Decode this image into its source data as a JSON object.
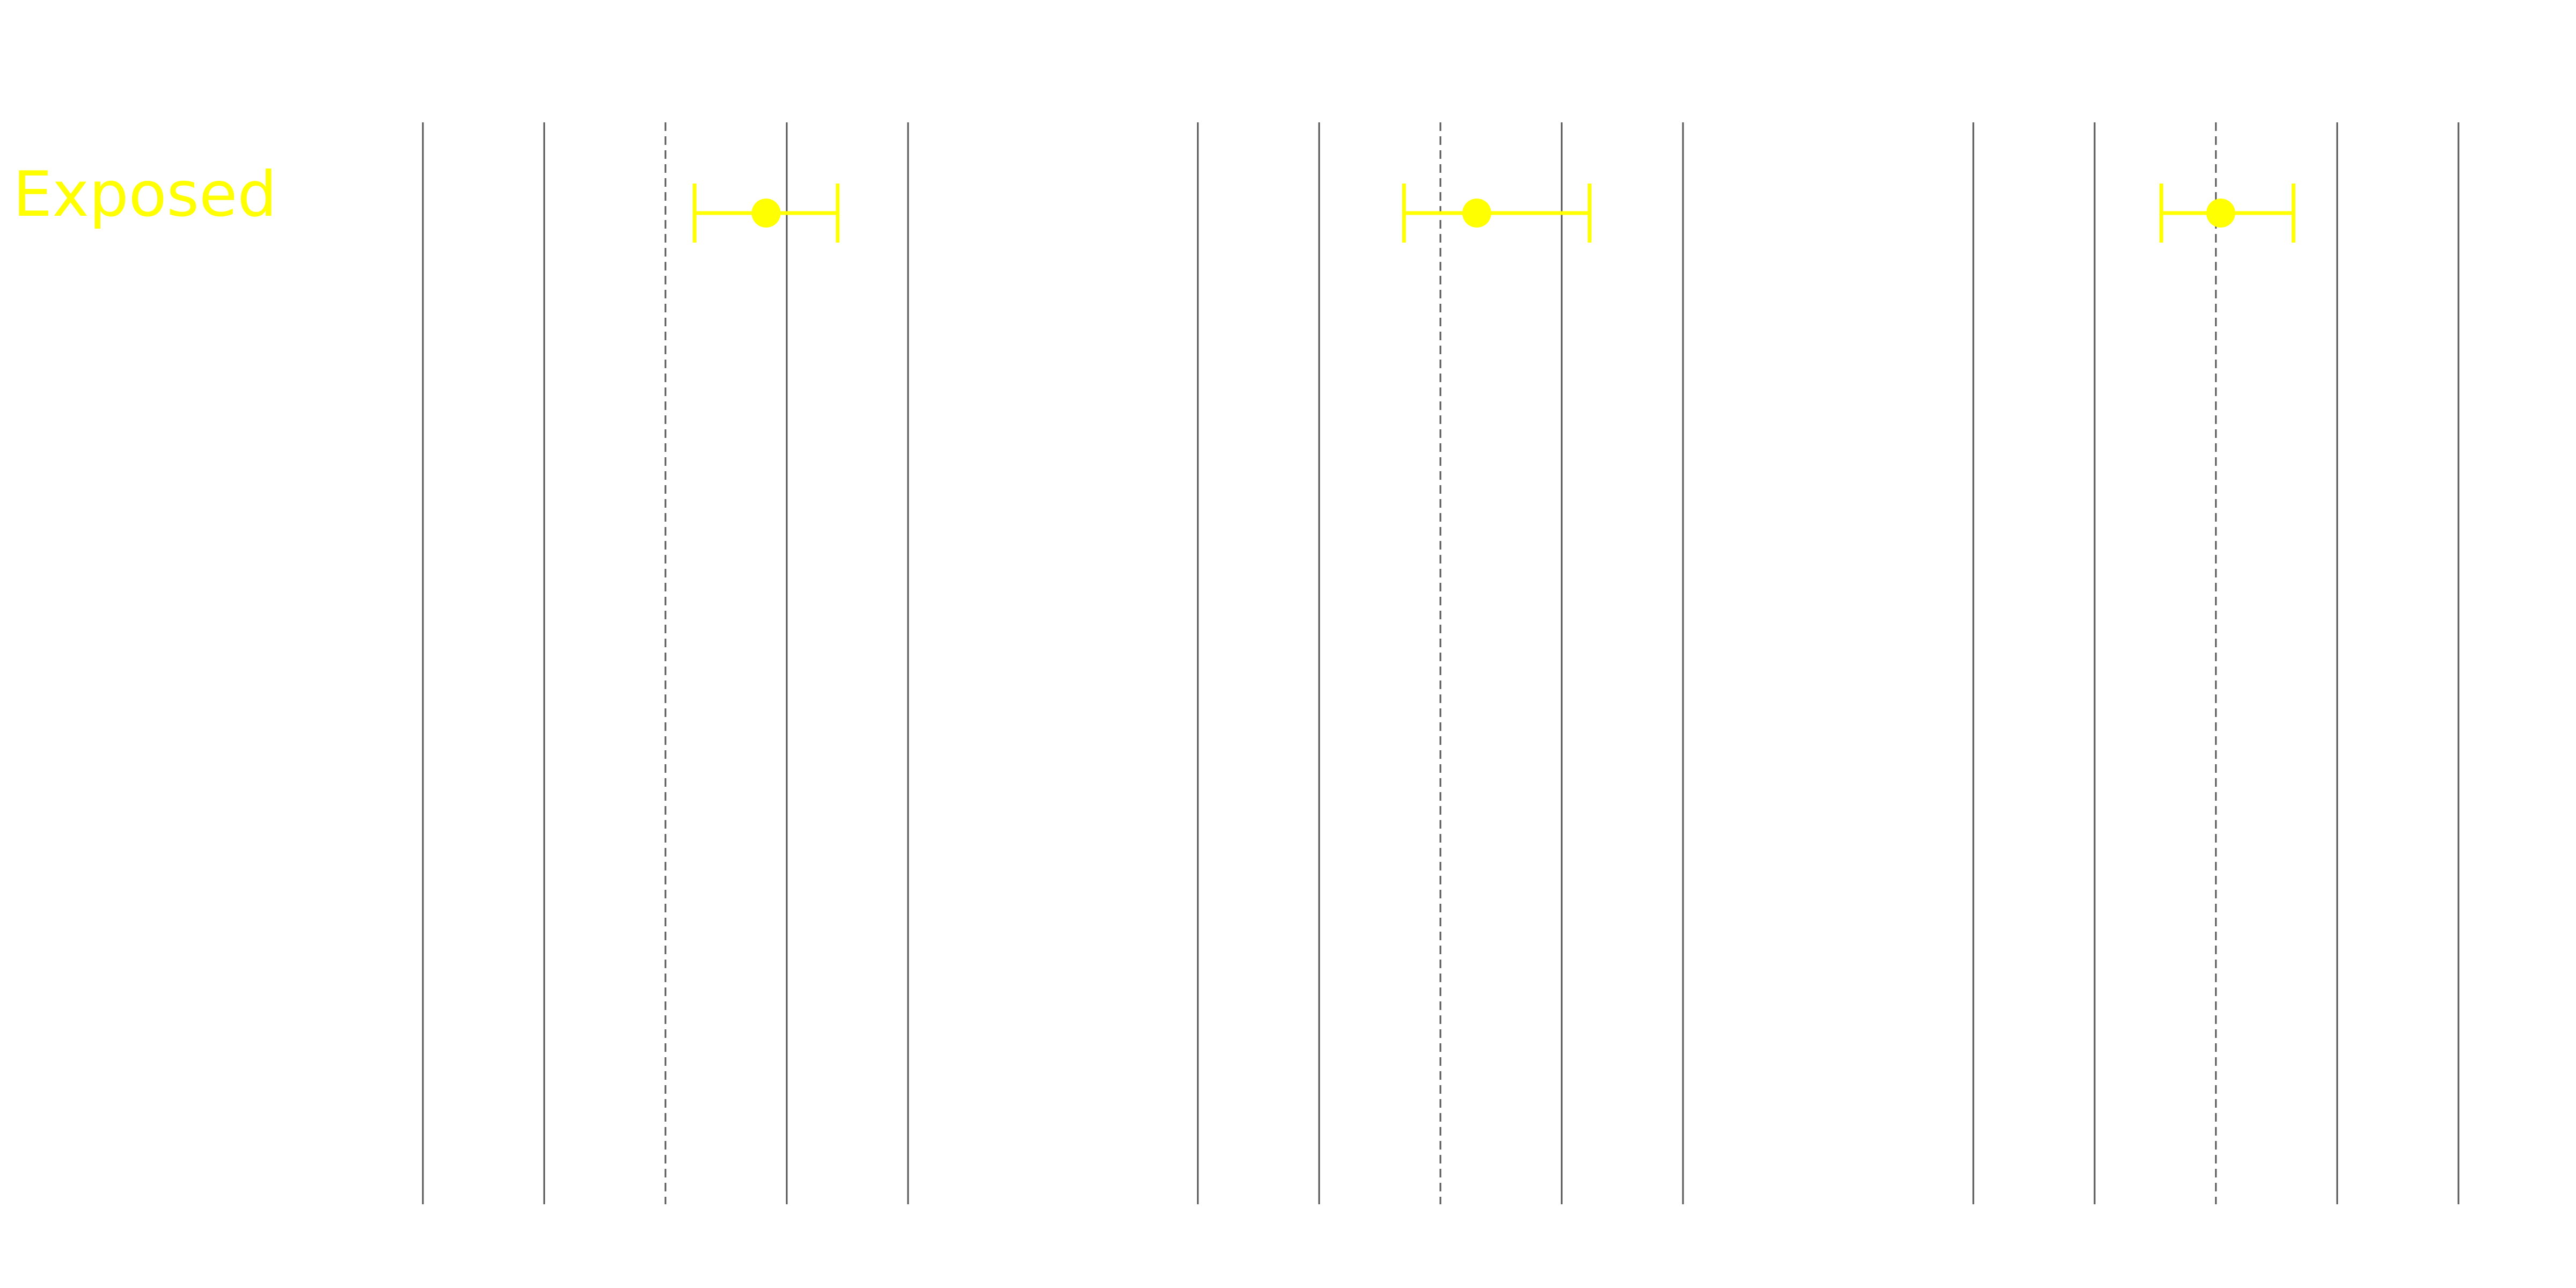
{
  "colors": {
    "background": "#ffffff",
    "gridline": "#555555",
    "reference_line": "#555555",
    "exposed": "#ffff00"
  },
  "chart_data": {
    "type": "scatter",
    "title": "",
    "xlabel": "",
    "ylabel": "",
    "grid": true,
    "legend": "none",
    "series_label": "Exposed",
    "panels": [
      {
        "xlim": [
          0,
          5
        ],
        "gridlines": [
          0,
          1,
          3,
          4
        ],
        "reference": 2,
        "point": {
          "x": 2.83,
          "lower": 2.24,
          "upper": 3.42
        }
      },
      {
        "xlim": [
          0,
          5
        ],
        "gridlines": [
          0,
          1,
          3,
          4
        ],
        "reference": 2,
        "point": {
          "x": 2.3,
          "lower": 1.7,
          "upper": 3.23
        }
      },
      {
        "xlim": [
          0,
          5
        ],
        "gridlines": [
          0,
          1,
          3,
          4
        ],
        "reference": 2,
        "point": {
          "x": 2.04,
          "lower": 1.55,
          "upper": 2.64
        }
      }
    ]
  }
}
